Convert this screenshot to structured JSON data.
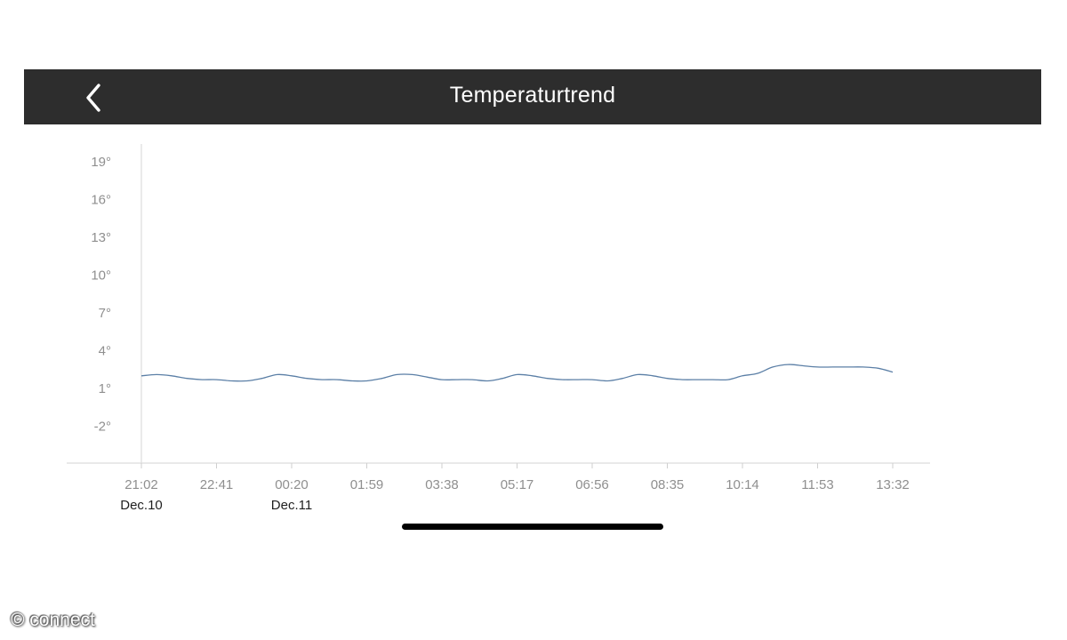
{
  "header": {
    "title": "Temperaturtrend",
    "back_icon": "chevron-left-icon",
    "background": "#2d2d2d"
  },
  "chart_data": {
    "type": "line",
    "title": "",
    "xlabel": "",
    "ylabel": "",
    "y_ticks": [
      "19°",
      "16°",
      "13°",
      "10°",
      "7°",
      "4°",
      "1°",
      "-2°"
    ],
    "ylim": [
      -5,
      21
    ],
    "x_ticks": [
      "21:02",
      "22:41",
      "00:20",
      "01:59",
      "03:38",
      "05:17",
      "06:56",
      "08:35",
      "10:14",
      "11:53",
      "13:32"
    ],
    "date_labels": [
      {
        "tick": "21:02",
        "label": "Dec.10"
      },
      {
        "tick": "00:20",
        "label": "Dec.11"
      }
    ],
    "grid": false,
    "line_color": "#5b7fa6",
    "series": [
      {
        "x": [
          "21:02",
          "21:22",
          "21:42",
          "22:02",
          "22:22",
          "22:41",
          "23:01",
          "23:21",
          "23:41",
          "24:01",
          "24:20",
          "24:40",
          "25:00",
          "25:20",
          "25:40",
          "25:59",
          "26:19",
          "26:39",
          "26:59",
          "27:19",
          "27:38",
          "27:58",
          "28:18",
          "28:38",
          "28:58",
          "29:17",
          "29:37",
          "29:57",
          "30:17",
          "30:37",
          "30:56",
          "31:16",
          "31:36",
          "31:56",
          "32:16",
          "32:35",
          "32:55",
          "33:15",
          "33:35",
          "33:55",
          "34:14",
          "34:34",
          "34:54",
          "35:14",
          "35:34",
          "35:53",
          "36:13",
          "36:33",
          "36:53",
          "37:13",
          "37:32"
        ],
        "values": [
          2.0,
          2.1,
          2.0,
          1.8,
          1.7,
          1.7,
          1.6,
          1.6,
          1.8,
          2.1,
          2.0,
          1.8,
          1.7,
          1.7,
          1.6,
          1.6,
          1.8,
          2.1,
          2.1,
          1.9,
          1.7,
          1.7,
          1.7,
          1.6,
          1.8,
          2.1,
          2.0,
          1.8,
          1.7,
          1.7,
          1.7,
          1.6,
          1.8,
          2.1,
          2.0,
          1.8,
          1.7,
          1.7,
          1.7,
          1.7,
          2.0,
          2.2,
          2.7,
          2.9,
          2.8,
          2.7,
          2.7,
          2.7,
          2.7,
          2.6,
          2.3
        ]
      }
    ]
  },
  "watermark": "© connect"
}
